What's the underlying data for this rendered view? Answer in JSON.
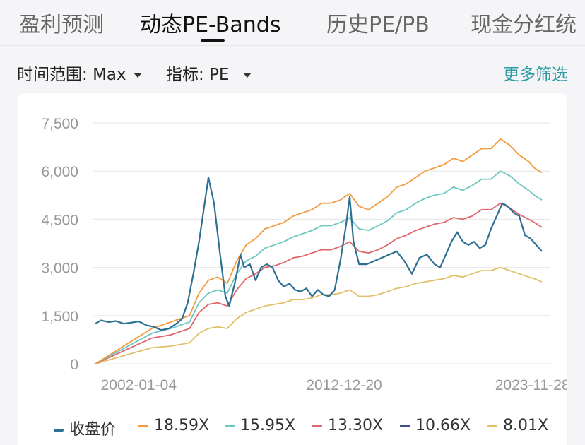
{
  "tabs": [
    {
      "label": "盈利预测"
    },
    {
      "label": "动态PE-Bands"
    },
    {
      "label": "历史PE/PB"
    },
    {
      "label": "现金分红统"
    }
  ],
  "filters": {
    "time_range_label": "时间范围:",
    "time_range_value": "Max",
    "indicator_label": "指标:",
    "indicator_value": "PE",
    "more_filters": "更多筛选"
  },
  "colors": {
    "close": "#2e6f94",
    "band_18_59": "#f39a3c",
    "band_15_95": "#6cc7c2",
    "band_13_30": "#e0666c",
    "band_10_66": "#3d4c86",
    "band_8_01": "#e2c06a"
  },
  "chart_data": {
    "type": "line",
    "title": "",
    "ylim": [
      0,
      7500
    ],
    "y_ticks": [
      "7,500",
      "6,000",
      "4,500",
      "3,000",
      "1,500",
      "0"
    ],
    "x_tick_labels": [
      "2002-01-04",
      "2012-12-20",
      "2023-11-28"
    ],
    "xlim": [
      2002.0,
      2026.0
    ],
    "grid": true,
    "legend_position": "bottom",
    "series": [
      {
        "name": "收盘价",
        "color_key": "close",
        "points": [
          [
            2002.0,
            1250
          ],
          [
            2002.3,
            1350
          ],
          [
            2002.7,
            1300
          ],
          [
            2003.1,
            1330
          ],
          [
            2003.5,
            1250
          ],
          [
            2003.9,
            1280
          ],
          [
            2004.3,
            1320
          ],
          [
            2004.7,
            1200
          ],
          [
            2005.1,
            1150
          ],
          [
            2005.5,
            1050
          ],
          [
            2005.9,
            1100
          ],
          [
            2006.3,
            1250
          ],
          [
            2006.6,
            1400
          ],
          [
            2006.9,
            1900
          ],
          [
            2007.2,
            2800
          ],
          [
            2007.5,
            3800
          ],
          [
            2007.8,
            5000
          ],
          [
            2008.0,
            5800
          ],
          [
            2008.3,
            5000
          ],
          [
            2008.6,
            3500
          ],
          [
            2008.9,
            2100
          ],
          [
            2009.1,
            1800
          ],
          [
            2009.4,
            2500
          ],
          [
            2009.7,
            3400
          ],
          [
            2009.9,
            3000
          ],
          [
            2010.2,
            3100
          ],
          [
            2010.5,
            2600
          ],
          [
            2010.8,
            3000
          ],
          [
            2011.1,
            3100
          ],
          [
            2011.4,
            3000
          ],
          [
            2011.7,
            2600
          ],
          [
            2012.0,
            2400
          ],
          [
            2012.3,
            2500
          ],
          [
            2012.6,
            2300
          ],
          [
            2012.9,
            2250
          ],
          [
            2013.2,
            2350
          ],
          [
            2013.5,
            2100
          ],
          [
            2013.8,
            2300
          ],
          [
            2014.1,
            2150
          ],
          [
            2014.4,
            2100
          ],
          [
            2014.7,
            2300
          ],
          [
            2015.0,
            3200
          ],
          [
            2015.3,
            4300
          ],
          [
            2015.5,
            5200
          ],
          [
            2015.7,
            3800
          ],
          [
            2016.0,
            3100
          ],
          [
            2016.4,
            3100
          ],
          [
            2016.8,
            3200
          ],
          [
            2017.2,
            3300
          ],
          [
            2017.6,
            3400
          ],
          [
            2018.0,
            3500
          ],
          [
            2018.4,
            3200
          ],
          [
            2018.8,
            2800
          ],
          [
            2019.2,
            3300
          ],
          [
            2019.6,
            3400
          ],
          [
            2020.0,
            3100
          ],
          [
            2020.3,
            3000
          ],
          [
            2020.6,
            3400
          ],
          [
            2020.9,
            3800
          ],
          [
            2021.2,
            4100
          ],
          [
            2021.5,
            3800
          ],
          [
            2021.8,
            3700
          ],
          [
            2022.1,
            3800
          ],
          [
            2022.4,
            3600
          ],
          [
            2022.7,
            3700
          ],
          [
            2023.0,
            4200
          ],
          [
            2023.3,
            4600
          ],
          [
            2023.6,
            5000
          ],
          [
            2023.9,
            4900
          ],
          [
            2024.2,
            4700
          ],
          [
            2024.5,
            4600
          ],
          [
            2024.8,
            4000
          ],
          [
            2025.1,
            3900
          ],
          [
            2025.4,
            3700
          ],
          [
            2025.7,
            3500
          ]
        ]
      },
      {
        "name": "18.59X",
        "color_key": "band_18_59",
        "points": [
          [
            2002.0,
            0
          ],
          [
            2005.0,
            1100
          ],
          [
            2006.0,
            1300
          ],
          [
            2007.0,
            1500
          ],
          [
            2007.5,
            2200
          ],
          [
            2008.0,
            2600
          ],
          [
            2008.5,
            2700
          ],
          [
            2009.0,
            2500
          ],
          [
            2009.5,
            3200
          ],
          [
            2010.0,
            3700
          ],
          [
            2010.5,
            3900
          ],
          [
            2011.0,
            4200
          ],
          [
            2011.5,
            4300
          ],
          [
            2012.0,
            4400
          ],
          [
            2012.5,
            4600
          ],
          [
            2013.0,
            4700
          ],
          [
            2013.5,
            4800
          ],
          [
            2014.0,
            5000
          ],
          [
            2014.5,
            5000
          ],
          [
            2015.0,
            5100
          ],
          [
            2015.5,
            5300
          ],
          [
            2016.0,
            4900
          ],
          [
            2016.5,
            4800
          ],
          [
            2017.0,
            5000
          ],
          [
            2017.5,
            5200
          ],
          [
            2018.0,
            5500
          ],
          [
            2018.5,
            5600
          ],
          [
            2019.0,
            5800
          ],
          [
            2019.5,
            6000
          ],
          [
            2020.0,
            6100
          ],
          [
            2020.5,
            6200
          ],
          [
            2021.0,
            6400
          ],
          [
            2021.5,
            6300
          ],
          [
            2022.0,
            6500
          ],
          [
            2022.5,
            6700
          ],
          [
            2023.0,
            6700
          ],
          [
            2023.5,
            7000
          ],
          [
            2024.0,
            6800
          ],
          [
            2024.5,
            6500
          ],
          [
            2025.0,
            6300
          ],
          [
            2025.3,
            6100
          ],
          [
            2025.7,
            5950
          ]
        ]
      },
      {
        "name": "15.95X",
        "color_key": "band_15_95",
        "points": [
          [
            2002.0,
            0
          ],
          [
            2005.0,
            950
          ],
          [
            2006.0,
            1100
          ],
          [
            2007.0,
            1300
          ],
          [
            2007.5,
            1900
          ],
          [
            2008.0,
            2200
          ],
          [
            2008.5,
            2300
          ],
          [
            2009.0,
            2200
          ],
          [
            2009.5,
            2800
          ],
          [
            2010.0,
            3200
          ],
          [
            2010.5,
            3350
          ],
          [
            2011.0,
            3600
          ],
          [
            2011.5,
            3700
          ],
          [
            2012.0,
            3800
          ],
          [
            2012.5,
            3950
          ],
          [
            2013.0,
            4050
          ],
          [
            2013.5,
            4150
          ],
          [
            2014.0,
            4300
          ],
          [
            2014.5,
            4300
          ],
          [
            2015.0,
            4400
          ],
          [
            2015.5,
            4550
          ],
          [
            2016.0,
            4200
          ],
          [
            2016.5,
            4150
          ],
          [
            2017.0,
            4300
          ],
          [
            2017.5,
            4450
          ],
          [
            2018.0,
            4700
          ],
          [
            2018.5,
            4800
          ],
          [
            2019.0,
            5000
          ],
          [
            2019.5,
            5150
          ],
          [
            2020.0,
            5250
          ],
          [
            2020.5,
            5300
          ],
          [
            2021.0,
            5500
          ],
          [
            2021.5,
            5400
          ],
          [
            2022.0,
            5550
          ],
          [
            2022.5,
            5750
          ],
          [
            2023.0,
            5750
          ],
          [
            2023.5,
            6000
          ],
          [
            2024.0,
            5850
          ],
          [
            2024.5,
            5600
          ],
          [
            2025.0,
            5400
          ],
          [
            2025.3,
            5250
          ],
          [
            2025.7,
            5100
          ]
        ]
      },
      {
        "name": "13.30X",
        "color_key": "band_13_30",
        "points": [
          [
            2002.0,
            0
          ],
          [
            2005.0,
            800
          ],
          [
            2006.0,
            900
          ],
          [
            2007.0,
            1100
          ],
          [
            2007.5,
            1600
          ],
          [
            2008.0,
            1850
          ],
          [
            2008.5,
            1900
          ],
          [
            2009.0,
            1800
          ],
          [
            2009.5,
            2300
          ],
          [
            2010.0,
            2650
          ],
          [
            2010.5,
            2800
          ],
          [
            2011.0,
            3000
          ],
          [
            2011.5,
            3050
          ],
          [
            2012.0,
            3150
          ],
          [
            2012.5,
            3300
          ],
          [
            2013.0,
            3350
          ],
          [
            2013.5,
            3450
          ],
          [
            2014.0,
            3550
          ],
          [
            2014.5,
            3550
          ],
          [
            2015.0,
            3650
          ],
          [
            2015.5,
            3800
          ],
          [
            2016.0,
            3500
          ],
          [
            2016.5,
            3450
          ],
          [
            2017.0,
            3550
          ],
          [
            2017.5,
            3700
          ],
          [
            2018.0,
            3900
          ],
          [
            2018.5,
            4000
          ],
          [
            2019.0,
            4150
          ],
          [
            2019.5,
            4250
          ],
          [
            2020.0,
            4350
          ],
          [
            2020.5,
            4400
          ],
          [
            2021.0,
            4550
          ],
          [
            2021.5,
            4500
          ],
          [
            2022.0,
            4600
          ],
          [
            2022.5,
            4800
          ],
          [
            2023.0,
            4800
          ],
          [
            2023.5,
            5000
          ],
          [
            2024.0,
            4850
          ],
          [
            2024.5,
            4650
          ],
          [
            2025.0,
            4500
          ],
          [
            2025.3,
            4400
          ],
          [
            2025.7,
            4250
          ]
        ]
      },
      {
        "name": "10.66X",
        "color_key": "band_10_66",
        "points": []
      },
      {
        "name": "8.01X",
        "color_key": "band_8_01",
        "points": [
          [
            2002.0,
            0
          ],
          [
            2005.0,
            500
          ],
          [
            2006.0,
            550
          ],
          [
            2007.0,
            650
          ],
          [
            2007.5,
            950
          ],
          [
            2008.0,
            1100
          ],
          [
            2008.5,
            1150
          ],
          [
            2009.0,
            1100
          ],
          [
            2009.5,
            1400
          ],
          [
            2010.0,
            1600
          ],
          [
            2010.5,
            1700
          ],
          [
            2011.0,
            1800
          ],
          [
            2011.5,
            1850
          ],
          [
            2012.0,
            1900
          ],
          [
            2012.5,
            2000
          ],
          [
            2013.0,
            2000
          ],
          [
            2013.5,
            2050
          ],
          [
            2014.0,
            2150
          ],
          [
            2014.5,
            2150
          ],
          [
            2015.0,
            2200
          ],
          [
            2015.5,
            2300
          ],
          [
            2016.0,
            2100
          ],
          [
            2016.5,
            2100
          ],
          [
            2017.0,
            2150
          ],
          [
            2017.5,
            2250
          ],
          [
            2018.0,
            2350
          ],
          [
            2018.5,
            2400
          ],
          [
            2019.0,
            2500
          ],
          [
            2019.5,
            2550
          ],
          [
            2020.0,
            2600
          ],
          [
            2020.5,
            2650
          ],
          [
            2021.0,
            2750
          ],
          [
            2021.5,
            2700
          ],
          [
            2022.0,
            2800
          ],
          [
            2022.5,
            2900
          ],
          [
            2023.0,
            2900
          ],
          [
            2023.5,
            3000
          ],
          [
            2024.0,
            2900
          ],
          [
            2024.5,
            2800
          ],
          [
            2025.0,
            2700
          ],
          [
            2025.3,
            2650
          ],
          [
            2025.7,
            2550
          ]
        ]
      }
    ]
  }
}
